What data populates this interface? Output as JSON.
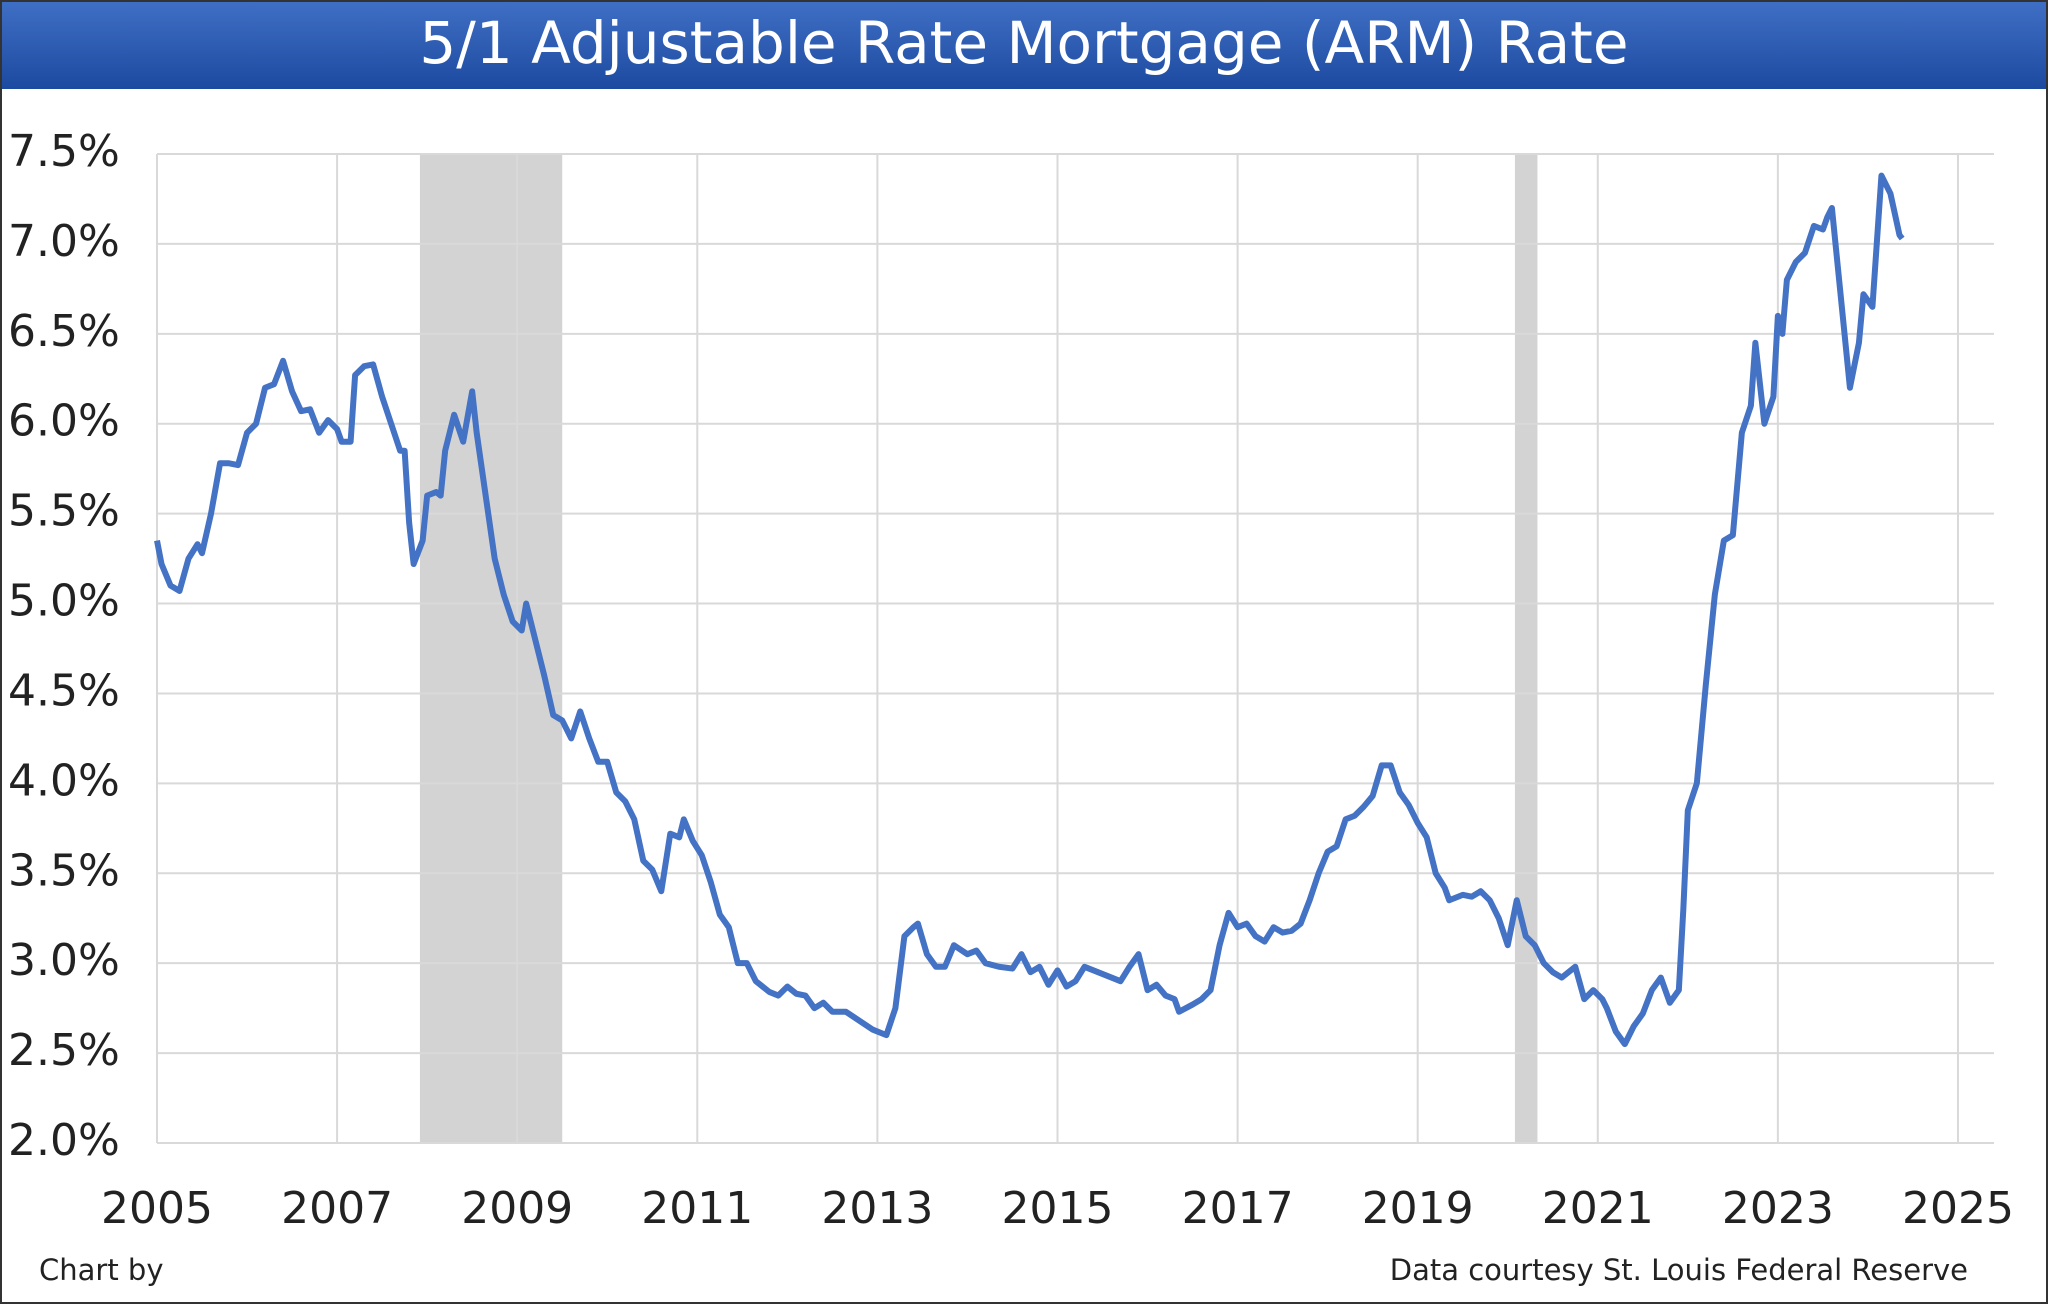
{
  "chart_data": {
    "type": "line",
    "title": "5/1 Adjustable Rate Mortgage (ARM) Rate",
    "footer_left": "Chart by",
    "footer_right": "Data courtesy St. Louis Federal Reserve",
    "color": "#4472c4",
    "grid": true,
    "shade_color": "#d3d3d3",
    "recessions": [
      [
        2007.92,
        2009.5
      ],
      [
        2020.08,
        2020.33
      ]
    ],
    "xlim": [
      2005,
      2025.4
    ],
    "xticks": [
      2005,
      2007,
      2009,
      2011,
      2013,
      2015,
      2017,
      2019,
      2021,
      2023,
      2025
    ],
    "ylim": [
      2.0,
      7.5
    ],
    "yticks": [
      {
        "value": 2.0,
        "label": "2.0%"
      },
      {
        "value": 2.5,
        "label": "2.5%"
      },
      {
        "value": 3.0,
        "label": "3.0%"
      },
      {
        "value": 3.5,
        "label": "3.5%"
      },
      {
        "value": 4.0,
        "label": "4.0%"
      },
      {
        "value": 4.5,
        "label": "4.5%"
      },
      {
        "value": 5.0,
        "label": "5.0%"
      },
      {
        "value": 5.5,
        "label": "5.5%"
      },
      {
        "value": 6.0,
        "label": "6.0%"
      },
      {
        "value": 6.5,
        "label": "6.5%"
      },
      {
        "value": 7.0,
        "label": "7.0%"
      },
      {
        "value": 7.5,
        "label": "7.5%"
      }
    ],
    "x": [
      2005.0,
      2005.05,
      2005.15,
      2005.25,
      2005.35,
      2005.45,
      2005.5,
      2005.6,
      2005.7,
      2005.8,
      2005.9,
      2006.0,
      2006.1,
      2006.2,
      2006.3,
      2006.4,
      2006.5,
      2006.6,
      2006.7,
      2006.8,
      2006.9,
      2007.0,
      2007.05,
      2007.15,
      2007.2,
      2007.3,
      2007.4,
      2007.5,
      2007.6,
      2007.7,
      2007.75,
      2007.8,
      2007.85,
      2007.95,
      2008.0,
      2008.1,
      2008.15,
      2008.2,
      2008.3,
      2008.4,
      2008.5,
      2008.55,
      2008.65,
      2008.75,
      2008.85,
      2008.95,
      2009.05,
      2009.1,
      2009.2,
      2009.3,
      2009.4,
      2009.5,
      2009.6,
      2009.7,
      2009.8,
      2009.9,
      2010.0,
      2010.1,
      2010.2,
      2010.3,
      2010.4,
      2010.5,
      2010.6,
      2010.7,
      2010.8,
      2010.85,
      2010.95,
      2011.05,
      2011.15,
      2011.25,
      2011.35,
      2011.45,
      2011.55,
      2011.65,
      2011.8,
      2011.9,
      2012.0,
      2012.1,
      2012.2,
      2012.3,
      2012.4,
      2012.5,
      2012.65,
      2012.8,
      2012.95,
      2013.1,
      2013.2,
      2013.3,
      2013.4,
      2013.45,
      2013.55,
      2013.65,
      2013.75,
      2013.85,
      2014.0,
      2014.1,
      2014.2,
      2014.35,
      2014.5,
      2014.6,
      2014.7,
      2014.8,
      2014.9,
      2015.0,
      2015.1,
      2015.2,
      2015.3,
      2015.45,
      2015.6,
      2015.7,
      2015.8,
      2015.9,
      2016.0,
      2016.1,
      2016.2,
      2016.3,
      2016.35,
      2016.5,
      2016.6,
      2016.7,
      2016.8,
      2016.9,
      2017.0,
      2017.1,
      2017.2,
      2017.3,
      2017.4,
      2017.5,
      2017.6,
      2017.7,
      2017.8,
      2017.9,
      2018.0,
      2018.1,
      2018.2,
      2018.3,
      2018.4,
      2018.5,
      2018.6,
      2018.7,
      2018.8,
      2018.9,
      2019.0,
      2019.1,
      2019.2,
      2019.3,
      2019.35,
      2019.5,
      2019.6,
      2019.7,
      2019.8,
      2019.9,
      2020.0,
      2020.1,
      2020.2,
      2020.3,
      2020.4,
      2020.5,
      2020.6,
      2020.75,
      2020.85,
      2020.95,
      2021.05,
      2021.1,
      2021.2,
      2021.3,
      2021.4,
      2021.5,
      2021.6,
      2021.7,
      2021.8,
      2021.9,
      2021.95,
      2022.0,
      2022.1,
      2022.2,
      2022.3,
      2022.4,
      2022.5,
      2022.6,
      2022.7,
      2022.75,
      2022.85,
      2022.95,
      2023.0,
      2023.05,
      2023.1,
      2023.2,
      2023.3,
      2023.4,
      2023.5,
      2023.55,
      2023.6,
      2023.7,
      2023.8,
      2023.9,
      2023.95,
      2024.05,
      2024.15,
      2024.25,
      2024.35,
      2024.38
    ],
    "values": [
      5.35,
      5.22,
      5.1,
      5.07,
      5.25,
      5.33,
      5.28,
      5.5,
      5.78,
      5.78,
      5.77,
      5.95,
      6.0,
      6.2,
      6.22,
      6.35,
      6.18,
      6.07,
      6.08,
      5.95,
      6.02,
      5.97,
      5.9,
      5.9,
      6.27,
      6.32,
      6.33,
      6.15,
      6.0,
      5.85,
      5.85,
      5.45,
      5.22,
      5.35,
      5.6,
      5.62,
      5.6,
      5.85,
      6.05,
      5.9,
      6.18,
      5.95,
      5.6,
      5.25,
      5.05,
      4.9,
      4.85,
      5.0,
      4.8,
      4.6,
      4.38,
      4.35,
      4.25,
      4.4,
      4.25,
      4.12,
      4.12,
      3.95,
      3.9,
      3.8,
      3.57,
      3.52,
      3.4,
      3.72,
      3.7,
      3.8,
      3.68,
      3.6,
      3.45,
      3.27,
      3.2,
      3.0,
      3.0,
      2.9,
      2.84,
      2.82,
      2.87,
      2.83,
      2.82,
      2.75,
      2.78,
      2.73,
      2.73,
      2.68,
      2.63,
      2.6,
      2.75,
      3.15,
      3.2,
      3.22,
      3.05,
      2.98,
      2.98,
      3.1,
      3.05,
      3.07,
      3.0,
      2.98,
      2.97,
      3.05,
      2.95,
      2.98,
      2.88,
      2.96,
      2.87,
      2.9,
      2.98,
      2.95,
      2.92,
      2.9,
      2.98,
      3.05,
      2.85,
      2.88,
      2.82,
      2.8,
      2.73,
      2.77,
      2.8,
      2.85,
      3.1,
      3.28,
      3.2,
      3.22,
      3.15,
      3.12,
      3.2,
      3.17,
      3.18,
      3.22,
      3.35,
      3.5,
      3.62,
      3.65,
      3.8,
      3.82,
      3.87,
      3.93,
      4.1,
      4.1,
      3.95,
      3.88,
      3.78,
      3.7,
      3.5,
      3.42,
      3.35,
      3.38,
      3.37,
      3.4,
      3.35,
      3.25,
      3.1,
      3.35,
      3.15,
      3.1,
      3.0,
      2.95,
      2.92,
      2.98,
      2.8,
      2.85,
      2.8,
      2.75,
      2.62,
      2.55,
      2.65,
      2.72,
      2.85,
      2.92,
      2.78,
      2.85,
      3.3,
      3.85,
      4.0,
      4.55,
      5.05,
      5.35,
      5.38,
      5.95,
      6.1,
      6.45,
      6.0,
      6.15,
      6.6,
      6.5,
      6.8,
      6.9,
      6.95,
      7.1,
      7.08,
      7.15,
      7.2,
      6.7,
      6.2,
      6.45,
      6.72,
      6.65,
      7.38,
      7.28,
      7.05,
      7.03
    ]
  }
}
